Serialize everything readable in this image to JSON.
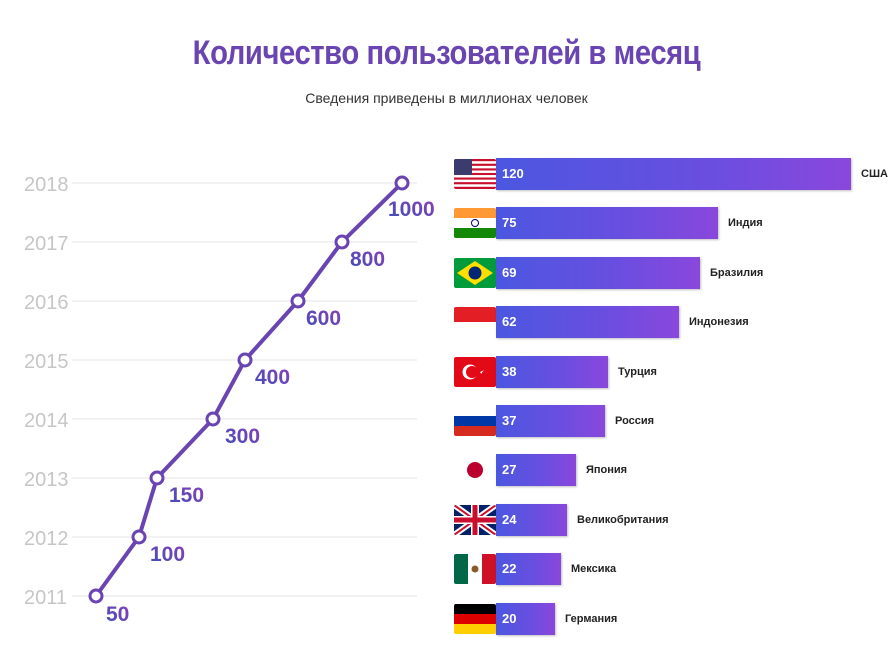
{
  "chart_data": [
    {
      "type": "line",
      "title": "Количество пользователей в месяц",
      "subtitle": "Сведения приведены в миллионах человек",
      "x": [
        "2011",
        "2012",
        "2013",
        "2014",
        "2015",
        "2016",
        "2017",
        "2018"
      ],
      "values": [
        50,
        100,
        150,
        300,
        400,
        600,
        800,
        1000
      ],
      "value_labels": [
        "50",
        "100",
        "150",
        "300",
        "400",
        "600",
        "800",
        "1000"
      ],
      "colors": {
        "line": "#6a45b2",
        "labels_start": "#3f4fb8",
        "labels_end": "#8a3fb8",
        "year": "#c6c6c6"
      }
    },
    {
      "type": "bar",
      "orientation": "horizontal",
      "categories": [
        "США",
        "Индия",
        "Бразилия",
        "Индонезия",
        "Турция",
        "Россия",
        "Япония",
        "Великобритания",
        "Мексика",
        "Германия"
      ],
      "values": [
        120,
        75,
        69,
        62,
        38,
        37,
        27,
        24,
        22,
        20
      ],
      "flags": [
        "usa-flag-icon",
        "india-flag-icon",
        "brazil-flag-icon",
        "indonesia-flag-icon",
        "turkey-flag-icon",
        "russia-flag-icon",
        "japan-flag-icon",
        "uk-flag-icon",
        "mexico-flag-icon",
        "germany-flag-icon"
      ],
      "colors": {
        "bar_start": "#4b57e0",
        "bar_end": "#8a47dc"
      }
    }
  ]
}
